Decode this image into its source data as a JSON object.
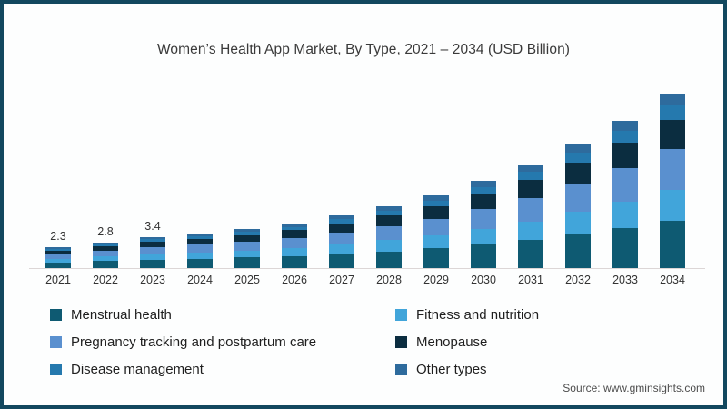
{
  "page": {
    "border_color": "#12485f",
    "background": "#fdfefe"
  },
  "chart_data": {
    "type": "bar",
    "stacked": true,
    "title": "Women’s Health App Market, By Type, 2021 – 2034 (USD Billion)",
    "xlabel": "",
    "ylabel": "",
    "grid": false,
    "legend_position": "bottom",
    "axis_line_color": "#dcd6d6",
    "categories": [
      "2021",
      "2022",
      "2023",
      "2024",
      "2025",
      "2026",
      "2027",
      "2028",
      "2029",
      "2030",
      "2031",
      "2032",
      "2033",
      "2034"
    ],
    "totals": [
      2.3,
      2.8,
      3.4,
      3.8,
      4.3,
      4.9,
      5.8,
      6.8,
      8.0,
      9.6,
      11.4,
      13.7,
      16.2,
      19.2
    ],
    "bar_labels": [
      "2.3",
      "2.8",
      "3.4",
      "",
      "",
      "",
      "",
      "",
      "",
      "",
      "",
      "",
      "",
      ""
    ],
    "series": [
      {
        "name": "Menstrual health",
        "color": "#0e5a72",
        "values": [
          0.62,
          0.76,
          0.92,
          1.03,
          1.16,
          1.32,
          1.57,
          1.84,
          2.16,
          2.59,
          3.08,
          3.7,
          4.37,
          5.18
        ]
      },
      {
        "name": "Fitness and nutrition",
        "color": "#41a5da",
        "values": [
          0.41,
          0.5,
          0.61,
          0.68,
          0.77,
          0.88,
          1.04,
          1.22,
          1.44,
          1.73,
          2.05,
          2.47,
          2.92,
          3.46
        ]
      },
      {
        "name": "Pregnancy tracking and postpartum care",
        "color": "#5a90cf",
        "values": [
          0.53,
          0.64,
          0.78,
          0.87,
          0.99,
          1.13,
          1.33,
          1.56,
          1.84,
          2.21,
          2.62,
          3.15,
          3.73,
          4.42
        ]
      },
      {
        "name": "Menopause",
        "color": "#0b2d40",
        "values": [
          0.39,
          0.48,
          0.58,
          0.65,
          0.73,
          0.83,
          0.99,
          1.16,
          1.36,
          1.63,
          1.94,
          2.33,
          2.75,
          3.26
        ]
      },
      {
        "name": "Disease management",
        "color": "#2579ae",
        "values": [
          0.18,
          0.22,
          0.27,
          0.3,
          0.34,
          0.39,
          0.46,
          0.54,
          0.64,
          0.77,
          0.91,
          1.1,
          1.3,
          1.54
        ]
      },
      {
        "name": "Other types",
        "color": "#2e6b9d",
        "values": [
          0.16,
          0.2,
          0.24,
          0.27,
          0.3,
          0.34,
          0.41,
          0.48,
          0.56,
          0.67,
          0.8,
          0.96,
          1.13,
          1.34
        ]
      }
    ]
  },
  "source": {
    "label": "Source: www.gminsights.com"
  }
}
